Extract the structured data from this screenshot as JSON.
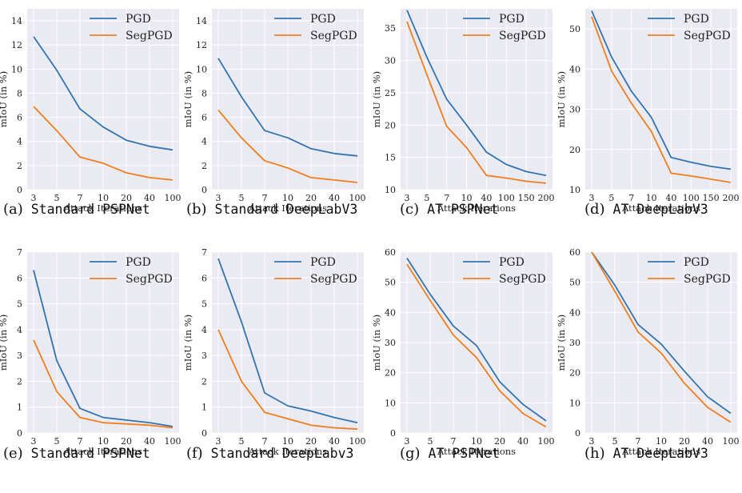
{
  "colors": {
    "pgd": "#3274b0",
    "segpgd": "#f07e1f",
    "plot_bg": "#eaeaf2",
    "grid": "#ffffff"
  },
  "chart_data": [
    {
      "type": "line",
      "caption_label": "(a)",
      "caption_text": "Standard PSPNet",
      "xlabel": "Attack Iterations",
      "ylabel": "mIoU (in %)",
      "categories": [
        "3",
        "5",
        "7",
        "10",
        "20",
        "40",
        "100"
      ],
      "ylim": [
        0,
        15
      ],
      "yticks": [
        0,
        2,
        4,
        6,
        8,
        10,
        12,
        14
      ],
      "legend": "top-right",
      "series": [
        {
          "name": "PGD",
          "values": [
            12.7,
            9.9,
            6.7,
            5.2,
            4.1,
            3.6,
            3.3
          ]
        },
        {
          "name": "SegPGD",
          "values": [
            6.9,
            4.9,
            2.7,
            2.2,
            1.4,
            1.0,
            0.8
          ]
        }
      ]
    },
    {
      "type": "line",
      "caption_label": "(b)",
      "caption_text": "Standard DeepLabV3",
      "xlabel": "Attack Iterations",
      "ylabel": "mIoU (in %)",
      "categories": [
        "3",
        "5",
        "7",
        "10",
        "20",
        "40",
        "100"
      ],
      "ylim": [
        0,
        15
      ],
      "yticks": [
        0,
        2,
        4,
        6,
        8,
        10,
        12,
        14
      ],
      "legend": "top-right",
      "series": [
        {
          "name": "PGD",
          "values": [
            10.9,
            7.7,
            4.9,
            4.3,
            3.4,
            3.0,
            2.8
          ]
        },
        {
          "name": "SegPGD",
          "values": [
            6.6,
            4.3,
            2.4,
            1.8,
            1.0,
            0.8,
            0.6
          ]
        }
      ]
    },
    {
      "type": "line",
      "caption_label": "(c)",
      "caption_text": "AT PSPNet",
      "xlabel": "Attack Iterations",
      "ylabel": "mIoU (in %)",
      "categories": [
        "3",
        "5",
        "7",
        "10",
        "40",
        "100",
        "150",
        "200"
      ],
      "ylim": [
        10,
        38
      ],
      "yticks": [
        10,
        15,
        20,
        25,
        30,
        35
      ],
      "legend": "top-right",
      "series": [
        {
          "name": "PGD",
          "values": [
            37.8,
            30.5,
            24.0,
            20.0,
            15.8,
            13.9,
            12.8,
            12.2
          ]
        },
        {
          "name": "SegPGD",
          "values": [
            36.0,
            27.8,
            19.8,
            16.5,
            12.2,
            11.8,
            11.3,
            11.0
          ]
        }
      ]
    },
    {
      "type": "line",
      "caption_label": "(d)",
      "caption_text": "AT DeepLabV3",
      "xlabel": "Attack Iterations",
      "ylabel": "mIoU (in %)",
      "categories": [
        "3",
        "5",
        "7",
        "10",
        "40",
        "100",
        "150",
        "200"
      ],
      "ylim": [
        10,
        55
      ],
      "yticks": [
        10,
        20,
        30,
        40,
        50
      ],
      "legend": "top-right",
      "series": [
        {
          "name": "PGD",
          "values": [
            54.5,
            43.0,
            34.5,
            28.0,
            18.0,
            16.8,
            15.8,
            15.1
          ]
        },
        {
          "name": "SegPGD",
          "values": [
            53.0,
            39.5,
            31.5,
            24.5,
            14.1,
            13.4,
            12.6,
            11.8
          ]
        }
      ]
    },
    {
      "type": "line",
      "caption_label": "(e)",
      "caption_text": "Standard PSPNet",
      "xlabel": "Attack Iterations",
      "ylabel": "mIoU (in %)",
      "categories": [
        "3",
        "5",
        "7",
        "10",
        "20",
        "40",
        "100"
      ],
      "ylim": [
        0,
        7
      ],
      "yticks": [
        0,
        1,
        2,
        3,
        4,
        5,
        6,
        7
      ],
      "legend": "top-right",
      "series": [
        {
          "name": "PGD",
          "values": [
            6.3,
            2.8,
            0.95,
            0.6,
            0.5,
            0.4,
            0.25
          ]
        },
        {
          "name": "SegPGD",
          "values": [
            3.6,
            1.6,
            0.6,
            0.4,
            0.35,
            0.3,
            0.2
          ]
        }
      ]
    },
    {
      "type": "line",
      "caption_label": "(f)",
      "caption_text": "Standard DeepLabv3",
      "xlabel": "Attack Iterations",
      "ylabel": "mIoU (in %)",
      "categories": [
        "3",
        "5",
        "7",
        "10",
        "20",
        "40",
        "100"
      ],
      "ylim": [
        0,
        7
      ],
      "yticks": [
        0,
        1,
        2,
        3,
        4,
        5,
        6,
        7
      ],
      "legend": "top-right",
      "series": [
        {
          "name": "PGD",
          "values": [
            6.75,
            4.3,
            1.55,
            1.05,
            0.85,
            0.6,
            0.4
          ]
        },
        {
          "name": "SegPGD",
          "values": [
            4.0,
            2.0,
            0.8,
            0.55,
            0.3,
            0.2,
            0.15
          ]
        }
      ]
    },
    {
      "type": "line",
      "caption_label": "(g)",
      "caption_text": "AT PSPNet",
      "xlabel": "Attack Iterations",
      "ylabel": "mIoU (in %)",
      "categories": [
        "3",
        "5",
        "7",
        "10",
        "20",
        "40",
        "100"
      ],
      "ylim": [
        0,
        60
      ],
      "yticks": [
        0,
        10,
        20,
        30,
        40,
        50,
        60
      ],
      "legend": "top-right",
      "series": [
        {
          "name": "PGD",
          "values": [
            58,
            46,
            35.5,
            29,
            17,
            9.5,
            4
          ]
        },
        {
          "name": "SegPGD",
          "values": [
            56,
            44,
            32.5,
            25,
            14,
            6.5,
            2
          ]
        }
      ]
    },
    {
      "type": "line",
      "caption_label": "(h)",
      "caption_text": "AT DeepLabV3",
      "xlabel": "Attack Iterations",
      "ylabel": "mIoU (in %)",
      "categories": [
        "3",
        "5",
        "7",
        "10",
        "20",
        "40",
        "100"
      ],
      "ylim": [
        0,
        60
      ],
      "yticks": [
        0,
        10,
        20,
        30,
        40,
        50,
        60
      ],
      "legend": "top-right",
      "series": [
        {
          "name": "PGD",
          "values": [
            63,
            49,
            36,
            29.5,
            20.5,
            12,
            6.5
          ]
        },
        {
          "name": "SegPGD",
          "values": [
            62,
            47,
            33.5,
            26.5,
            16.5,
            8.5,
            3.5
          ]
        }
      ]
    }
  ]
}
